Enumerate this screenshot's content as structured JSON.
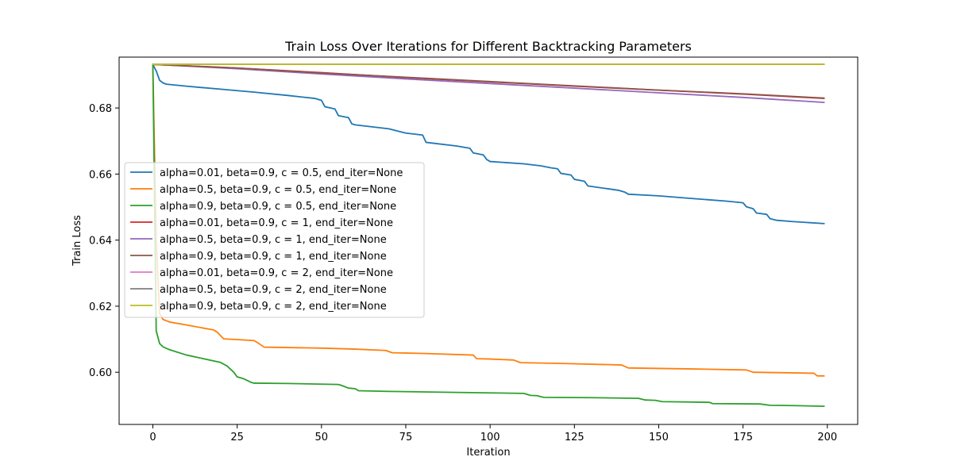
{
  "chart_data": {
    "type": "line",
    "title": "Train Loss Over Iterations for Different Backtracking Parameters",
    "xlabel": "Iteration",
    "ylabel": "Train Loss",
    "xlim": [
      -10,
      209
    ],
    "ylim": [
      0.5842,
      0.6954
    ],
    "xticks": [
      0,
      25,
      50,
      75,
      100,
      125,
      150,
      175,
      200
    ],
    "yticks": [
      0.6,
      0.62,
      0.64,
      0.66,
      0.68
    ],
    "ytick_labels": [
      "0.60",
      "0.62",
      "0.64",
      "0.66",
      "0.68"
    ],
    "grid": false,
    "legend_position": "center-left",
    "series": [
      {
        "name": "alpha=0.01, beta=0.9, c = 0.5, end_iter=None",
        "color": "#1f77b4",
        "x": [
          0,
          1,
          2,
          3,
          4,
          10,
          20,
          30,
          40,
          48,
          50,
          51,
          54,
          55,
          58,
          59,
          60,
          70,
          75,
          80,
          81,
          90,
          94,
          95,
          98,
          99,
          100,
          110,
          115,
          118,
          120,
          121,
          124,
          125,
          128,
          129,
          138,
          140,
          141,
          150,
          160,
          170,
          175,
          176,
          178,
          179,
          182,
          183,
          185,
          190,
          199
        ],
        "y": [
          0.6932,
          0.6912,
          0.6884,
          0.6876,
          0.6872,
          0.6866,
          0.6857,
          0.6848,
          0.6838,
          0.6829,
          0.6823,
          0.6804,
          0.6797,
          0.6777,
          0.6771,
          0.6752,
          0.6749,
          0.6737,
          0.6724,
          0.6718,
          0.6696,
          0.6685,
          0.6678,
          0.6664,
          0.6658,
          0.6644,
          0.6638,
          0.6631,
          0.6625,
          0.6619,
          0.6616,
          0.6602,
          0.6597,
          0.6584,
          0.6578,
          0.6564,
          0.6551,
          0.6545,
          0.6539,
          0.6534,
          0.6526,
          0.6518,
          0.6513,
          0.6501,
          0.6495,
          0.6482,
          0.6478,
          0.6465,
          0.646,
          0.6456,
          0.645
        ]
      },
      {
        "name": "alpha=0.5, beta=0.9, c = 0.5, end_iter=None",
        "color": "#ff7f0e",
        "x": [
          0,
          1,
          2,
          3,
          5,
          10,
          18,
          19,
          21,
          30,
          31,
          33,
          50,
          60,
          69,
          71,
          80,
          95,
          96,
          100,
          107,
          109,
          120,
          139,
          141,
          160,
          176,
          178,
          196,
          197,
          199
        ],
        "y": [
          0.6932,
          0.64,
          0.6178,
          0.616,
          0.6152,
          0.6143,
          0.6128,
          0.6122,
          0.6101,
          0.6096,
          0.609,
          0.6076,
          0.6073,
          0.607,
          0.6066,
          0.6059,
          0.6057,
          0.6052,
          0.6041,
          0.604,
          0.6037,
          0.6029,
          0.6027,
          0.6022,
          0.6013,
          0.601,
          0.6007,
          0.6,
          0.5997,
          0.5989,
          0.5989
        ]
      },
      {
        "name": "alpha=0.9, beta=0.9, c = 0.5, end_iter=None",
        "color": "#2ca02c",
        "x": [
          0,
          1,
          2,
          3,
          5,
          10,
          20,
          22,
          24,
          25,
          27,
          29,
          30,
          40,
          55,
          56,
          58,
          60,
          61,
          70,
          90,
          110,
          112,
          114,
          115,
          116,
          130,
          144,
          146,
          149,
          151,
          165,
          166,
          180,
          183,
          190,
          199
        ],
        "y": [
          0.6932,
          0.6125,
          0.6087,
          0.6077,
          0.6068,
          0.6052,
          0.603,
          0.6019,
          0.6,
          0.5986,
          0.598,
          0.597,
          0.5967,
          0.5966,
          0.5963,
          0.596,
          0.5952,
          0.595,
          0.5944,
          0.5942,
          0.5939,
          0.5936,
          0.593,
          0.5929,
          0.5926,
          0.5924,
          0.5923,
          0.5921,
          0.5916,
          0.5915,
          0.5911,
          0.5909,
          0.5905,
          0.5904,
          0.59,
          0.5899,
          0.5897
        ]
      },
      {
        "name": "alpha=0.01, beta=0.9, c = 1, end_iter=None",
        "color": "#d62728",
        "x": [
          0,
          25,
          50,
          75,
          100,
          125,
          150,
          175,
          199
        ],
        "y": [
          0.6932,
          0.6921,
          0.6907,
          0.6892,
          0.6879,
          0.6866,
          0.6854,
          0.6842,
          0.6829
        ]
      },
      {
        "name": "alpha=0.5, beta=0.9, c = 1, end_iter=None",
        "color": "#9467bd",
        "x": [
          0,
          25,
          50,
          75,
          100,
          125,
          150,
          175,
          199
        ],
        "y": [
          0.6932,
          0.6919,
          0.6903,
          0.6888,
          0.6874,
          0.686,
          0.6846,
          0.6832,
          0.6817
        ]
      },
      {
        "name": "alpha=0.9, beta=0.9, c = 1, end_iter=None",
        "color": "#8c564b",
        "x": [
          0,
          25,
          50,
          75,
          100,
          125,
          150,
          175,
          199
        ],
        "y": [
          0.6932,
          0.6921,
          0.6906,
          0.6893,
          0.688,
          0.6867,
          0.6854,
          0.6843,
          0.683
        ]
      },
      {
        "name": "alpha=0.01, beta=0.9, c = 2, end_iter=None",
        "color": "#e377c2",
        "x": [
          0,
          199
        ],
        "y": [
          0.6932,
          0.6932
        ]
      },
      {
        "name": "alpha=0.5, beta=0.9, c = 2, end_iter=None",
        "color": "#7f7f7f",
        "x": [
          0,
          199
        ],
        "y": [
          0.6932,
          0.6932
        ]
      },
      {
        "name": "alpha=0.9, beta=0.9, c = 2, end_iter=None",
        "color": "#bcbd22",
        "x": [
          0,
          199
        ],
        "y": [
          0.6932,
          0.6932
        ]
      }
    ]
  }
}
